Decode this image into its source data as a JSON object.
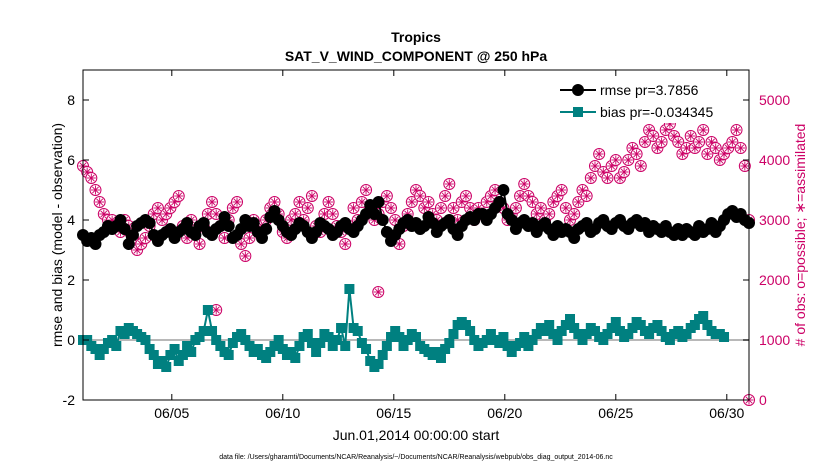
{
  "chart_data": {
    "type": "line",
    "title": "Tropics",
    "subtitle": "SAT_V_WIND_COMPONENT @ 250 hPa",
    "xlabel": "Jun.01,2014 00:00:00 start",
    "ylabel": "rmse and bias (model - observation)",
    "y2label": "# of obs: o=possible; ∗=assimilated",
    "footnote": "data file: /Users/gharamti/Documents/NCAR/Reanalysis/~/Documents/NCAR/Reanalysis/webpub/obs_diag_output_2014-06.nc",
    "xlim": [
      1,
      31
    ],
    "ylim": [
      -2,
      9
    ],
    "y2lim": [
      0,
      5500
    ],
    "x_ticks": [
      5,
      10,
      15,
      20,
      25,
      30
    ],
    "x_tick_labels": [
      "06/05",
      "06/10",
      "06/15",
      "06/20",
      "06/25",
      "06/30"
    ],
    "y_ticks": [
      -2,
      0,
      2,
      4,
      6,
      8
    ],
    "y_tick_labels": [
      "-2",
      "0",
      "2",
      "4",
      "6",
      "8"
    ],
    "y2_ticks": [
      0,
      1000,
      2000,
      3000,
      4000,
      5000
    ],
    "y2_tick_labels": [
      "0",
      "1000",
      "2000",
      "3000",
      "4000",
      "5000"
    ],
    "legend_position": "top-right",
    "colors": {
      "rmse": "#000000",
      "bias": "#008080",
      "obs": "#cc0066",
      "zero_line": "#b8b8b8"
    },
    "series": [
      {
        "name": "rmse pr=3.7856",
        "values": [
          3.5,
          3.3,
          3.4,
          3.2,
          3.5,
          3.6,
          3.8,
          3.7,
          3.8,
          4.0,
          3.7,
          3.2,
          3.5,
          3.8,
          3.9,
          4.0,
          3.9,
          3.5,
          3.3,
          3.5,
          3.6,
          3.7,
          3.4,
          3.6,
          3.7,
          3.9,
          3.6,
          3.5,
          3.8,
          3.9,
          3.6,
          3.5,
          3.7,
          3.8,
          4.1,
          3.8,
          3.4,
          3.5,
          3.7,
          4.0,
          3.8,
          3.9,
          3.6,
          3.4,
          3.7,
          4.1,
          4.3,
          4.0,
          3.8,
          3.6,
          3.5,
          3.7,
          3.9,
          3.8,
          3.6,
          3.4,
          3.6,
          3.9,
          3.8,
          3.7,
          3.5,
          3.6,
          3.8,
          3.9,
          3.7,
          3.6,
          3.8,
          4.0,
          4.2,
          4.5,
          4.2,
          4.6,
          4.0,
          3.6,
          3.3,
          3.5,
          3.7,
          3.9,
          4.0,
          3.8,
          3.9,
          3.7,
          3.8,
          4.1,
          3.9,
          3.6,
          3.8,
          3.9,
          4.0,
          3.7,
          3.5,
          3.8,
          4.0,
          4.1,
          4.0,
          4.2,
          4.2,
          4.0,
          4.2,
          4.4,
          4.6,
          5.0,
          4.2,
          4.0,
          3.7,
          3.9,
          4.0,
          3.8,
          3.9,
          3.6,
          3.8,
          3.9,
          3.7,
          3.5,
          3.8,
          3.6,
          3.7,
          3.6,
          3.4,
          3.7,
          3.8,
          3.9,
          3.6,
          3.7,
          3.9,
          4.0,
          3.8,
          3.7,
          3.9,
          4.0,
          3.8,
          3.7,
          3.9,
          4.0,
          3.8,
          3.9,
          3.6,
          3.8,
          3.7,
          3.6,
          3.8,
          3.6,
          3.5,
          3.7,
          3.5,
          3.7,
          3.6,
          3.5,
          3.8,
          3.6,
          3.7,
          3.9,
          3.6,
          3.8,
          4.0,
          4.2,
          4.3,
          4.1,
          4.2,
          4.0,
          3.9
        ]
      },
      {
        "name": "bias pr=-0.034345",
        "values": [
          0.0,
          0.0,
          -0.2,
          -0.3,
          -0.5,
          -0.3,
          -0.1,
          0.0,
          -0.2,
          0.3,
          0.2,
          0.4,
          0.3,
          0.2,
          0.1,
          0.0,
          -0.3,
          -0.5,
          -0.8,
          -0.7,
          -0.9,
          -0.5,
          -0.3,
          -0.7,
          -0.5,
          -0.2,
          -0.4,
          0.0,
          0.1,
          0.3,
          1.0,
          0.3,
          0.0,
          -0.2,
          -0.4,
          -0.5,
          -0.1,
          0.1,
          0.2,
          0.0,
          -0.2,
          -0.4,
          -0.3,
          -0.5,
          -0.6,
          -0.4,
          -0.2,
          0.0,
          -0.3,
          -0.5,
          -0.4,
          -0.6,
          -0.2,
          0.1,
          0.2,
          -0.1,
          -0.4,
          -0.1,
          0.2,
          0.1,
          -0.2,
          0.0,
          0.4,
          -0.2,
          1.7,
          0.4,
          0.3,
          -0.1,
          -0.3,
          -0.7,
          -0.9,
          -0.8,
          -0.5,
          -0.2,
          0.1,
          0.3,
          0.1,
          -0.2,
          0.0,
          0.2,
          0.1,
          -0.2,
          -0.3,
          -0.4,
          -0.5,
          -0.4,
          -0.6,
          -0.3,
          -0.1,
          0.2,
          0.5,
          0.6,
          0.5,
          0.3,
          0.0,
          -0.2,
          -0.1,
          0.0,
          0.2,
          0.0,
          -0.1,
          0.1,
          -0.2,
          -0.4,
          -0.2,
          -0.1,
          0.1,
          -0.2,
          0.0,
          0.2,
          0.4,
          0.3,
          0.5,
          0.2,
          0.0,
          0.3,
          0.5,
          0.7,
          0.4,
          0.2,
          0.0,
          0.2,
          0.4,
          0.3,
          0.1,
          0.0,
          0.2,
          0.4,
          0.6,
          0.3,
          0.1,
          0.2,
          0.4,
          0.6,
          0.5,
          0.3,
          0.2,
          0.4,
          0.5,
          0.3,
          0.1,
          0.0,
          0.2,
          0.3,
          0.1,
          0.2,
          0.4,
          0.5,
          0.7,
          0.8,
          0.5,
          0.3,
          0.2,
          0.2,
          0.1
        ]
      },
      {
        "name": "# of obs (possible / assimilated)",
        "axis": "right",
        "values": [
          3900,
          3800,
          3700,
          3500,
          3300,
          3100,
          3000,
          3000,
          2900,
          2800,
          3000,
          2900,
          2700,
          2500,
          2600,
          2700,
          2900,
          3100,
          3200,
          3000,
          3100,
          3200,
          3300,
          3400,
          2900,
          2700,
          3000,
          2800,
          2600,
          2900,
          3100,
          3300,
          3100,
          2900,
          2700,
          3000,
          3200,
          3300,
          2600,
          2400,
          2700,
          3000,
          2800,
          2900,
          3000,
          3200,
          3300,
          3100,
          2800,
          2700,
          3000,
          3100,
          3300,
          3000,
          3200,
          3400,
          2900,
          2800,
          3100,
          3300,
          3100,
          2900,
          2800,
          2600,
          2900,
          3200,
          3000,
          3300,
          3500,
          3200,
          3000,
          3100,
          3300,
          3400,
          3200,
          3000,
          2600,
          2900,
          3100,
          3300,
          3500,
          3400,
          3200,
          3300,
          3100,
          3000,
          3200,
          3400,
          3600,
          3200,
          3000,
          3300,
          3400,
          3200,
          3000,
          3200,
          3100,
          3300,
          3400,
          3500,
          3300,
          3200,
          3000,
          3100,
          3200,
          3400,
          3600,
          3400,
          3300,
          3100,
          3200,
          3000,
          3100,
          3300,
          3400,
          3500,
          3200,
          3000,
          3100,
          3300,
          3500,
          3400,
          3700,
          3900,
          4100,
          3800,
          3700,
          3900,
          4000,
          3700,
          3800,
          4000,
          4200,
          4100,
          3900,
          4300,
          4500,
          4400,
          4200,
          4300,
          4500,
          4600,
          4400,
          4300,
          4100,
          4200,
          4400,
          4200,
          4300,
          4500,
          4100,
          4300,
          4200,
          4000,
          4100,
          4200,
          4300,
          4500,
          4200,
          3900,
          3000
        ]
      }
    ],
    "annotations": [
      {
        "x": 7.0,
        "obs": 1500,
        "note": "obs marker near bias spike"
      },
      {
        "x": 14.3,
        "obs": 1800,
        "note": "obs marker near bias spike"
      },
      {
        "x": 31.0,
        "obs": 0,
        "note": "obs marker at zero"
      }
    ]
  },
  "legend": {
    "rmse_label": "rmse pr=3.7856",
    "bias_label": "bias pr=-0.034345"
  }
}
